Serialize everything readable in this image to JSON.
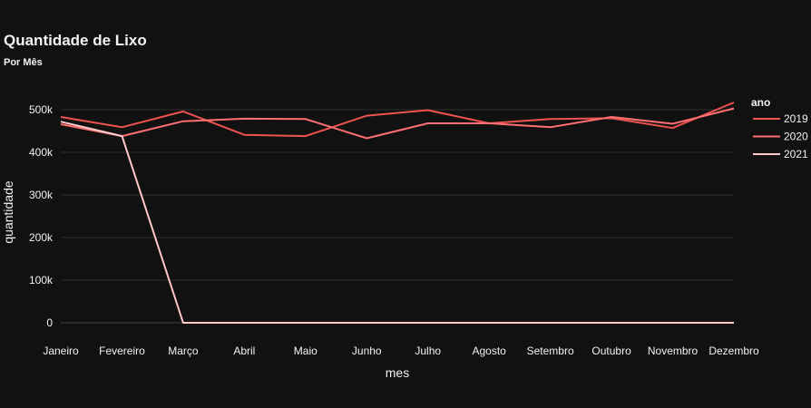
{
  "chart_data": {
    "type": "line",
    "title": "Quantidade de Lixo",
    "subtitle": "Por Mês",
    "xlabel": "mes",
    "ylabel": "quantidade",
    "categories": [
      "Janeiro",
      "Fevereiro",
      "Março",
      "Abril",
      "Maio",
      "Junho",
      "Julho",
      "Agosto",
      "Setembro",
      "Outubro",
      "Novembro",
      "Dezembro"
    ],
    "ylim": [
      -40000,
      540000
    ],
    "yticks": [
      0,
      100000,
      200000,
      300000,
      400000,
      500000
    ],
    "ytick_labels": [
      "0",
      "100k",
      "200k",
      "300k",
      "400k",
      "500k"
    ],
    "grid": true,
    "legend_title": "ano",
    "legend_position": "right",
    "series": [
      {
        "name": "2019",
        "color": "#ef5350",
        "values": [
          483000,
          459000,
          496000,
          441000,
          438000,
          486000,
          499000,
          468000,
          478000,
          480000,
          457000,
          517000
        ]
      },
      {
        "name": "2020",
        "color": "#ff7070",
        "values": [
          466000,
          438000,
          473000,
          479000,
          478000,
          433000,
          468000,
          468000,
          459000,
          483000,
          467000,
          503000
        ]
      },
      {
        "name": "2021",
        "color": "#ffc9c9",
        "values": [
          472000,
          438000,
          0,
          0,
          0,
          0,
          0,
          0,
          0,
          0,
          0,
          0
        ]
      }
    ]
  }
}
